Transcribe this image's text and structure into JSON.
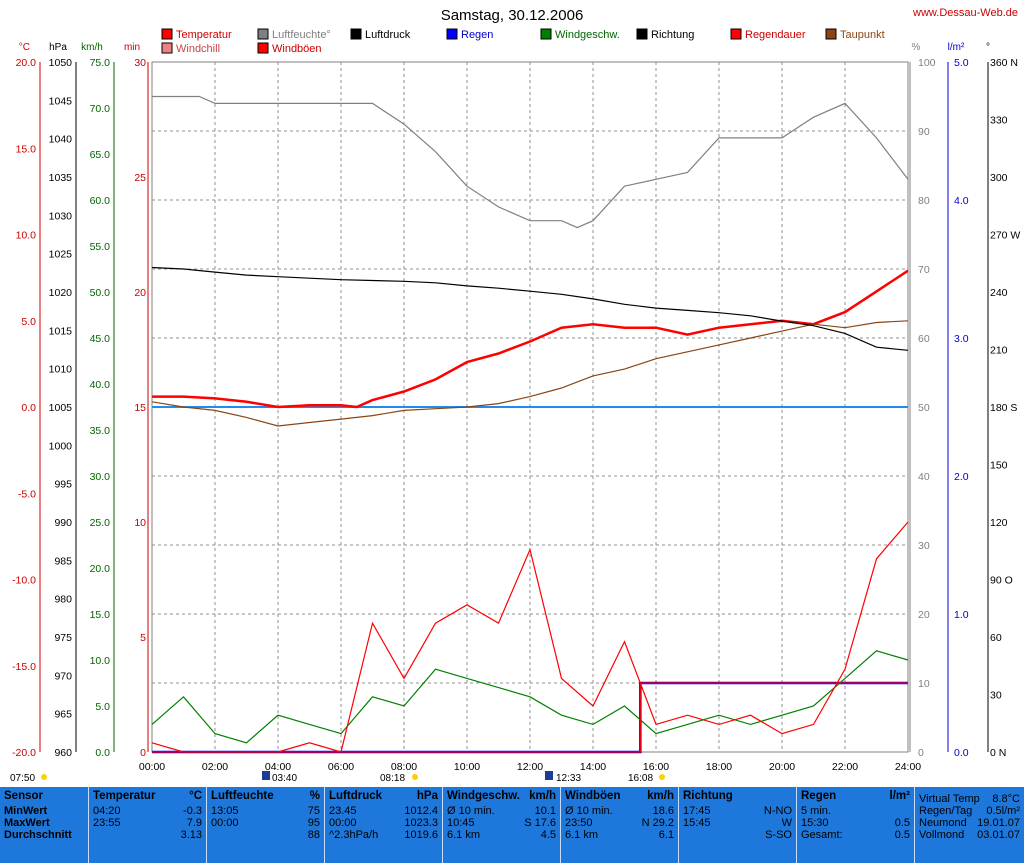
{
  "header": {
    "title": "Samstag, 30.12.2006",
    "site": "www.Dessau-Web.de"
  },
  "legend": [
    {
      "label": "Temperatur",
      "color": "#ff0000"
    },
    {
      "label": "Windchill",
      "color": "#f08080"
    },
    {
      "label": "Luftfeuchte°",
      "color": "#808080"
    },
    {
      "label": "Windböen",
      "color": "#ff0000"
    },
    {
      "label": "Luftdruck",
      "color": "#000000"
    },
    {
      "label": "Regen",
      "color": "#0000ff"
    },
    {
      "label": "Windgeschw.",
      "color": "#008000"
    },
    {
      "label": "Richtung",
      "color": "#000000"
    },
    {
      "label": "Regendauer",
      "color": "#ff0000"
    },
    {
      "label": "Taupunkt",
      "color": "#8b4513"
    }
  ],
  "axis_units": {
    "temp": "°C",
    "pressure": "hPa",
    "wind": "km/h",
    "min": "min",
    "humidity": "%",
    "rain": "l/m²",
    "direction": "°"
  },
  "axes": {
    "temp_ticks": [
      "20.0",
      "15.0",
      "10.0",
      "5.0",
      "0.0",
      "-5.0",
      "-10.0",
      "-15.0",
      "-20.0"
    ],
    "pressure_ticks": [
      "1050",
      "1045",
      "1040",
      "1035",
      "1030",
      "1025",
      "1020",
      "1015",
      "1010",
      "1005",
      "1000",
      "995",
      "990",
      "985",
      "980",
      "975",
      "970",
      "965",
      "960"
    ],
    "wind_ticks": [
      "75.0",
      "70.0",
      "65.0",
      "60.0",
      "55.0",
      "50.0",
      "45.0",
      "40.0",
      "35.0",
      "30.0",
      "25.0",
      "20.0",
      "15.0",
      "10.0",
      "5.0",
      "0.0"
    ],
    "min_ticks": [
      "30",
      "25",
      "20",
      "15",
      "10",
      "5",
      "0"
    ],
    "humidity_ticks": [
      "100",
      "90",
      "80",
      "70",
      "60",
      "50",
      "40",
      "30",
      "20",
      "10",
      "0"
    ],
    "rain_ticks": [
      "5.0",
      "4.0",
      "3.0",
      "2.0",
      "1.0",
      "0.0"
    ],
    "dir_ticks": [
      "360 N",
      "330",
      "300",
      "270 W",
      "240",
      "210",
      "180 S",
      "150",
      "120",
      "90  O",
      "60",
      "30",
      "0  N"
    ],
    "x_ticks": [
      "00:00",
      "02:00",
      "04:00",
      "06:00",
      "08:00",
      "10:00",
      "12:00",
      "14:00",
      "16:00",
      "18:00",
      "20:00",
      "22:00",
      "24:00"
    ]
  },
  "sun_moon": {
    "sunrise": "07:50",
    "moonset": "03:40",
    "sunrise_marker": "08:18",
    "moonrise": "12:33",
    "sunset": "16:08"
  },
  "chart_data": {
    "type": "line",
    "title": "Samstag, 30.12.2006",
    "x_unit": "hours",
    "xlim": [
      0,
      24
    ],
    "series": [
      {
        "name": "Temperatur",
        "axis": "temp",
        "ylim": [
          -20,
          20
        ],
        "x": [
          0,
          1,
          2,
          3,
          4,
          5,
          6,
          6.5,
          7,
          8,
          9,
          10,
          11,
          12,
          13,
          14,
          15,
          16,
          17,
          18,
          19,
          20,
          21,
          22,
          23,
          24
        ],
        "y": [
          0.6,
          0.6,
          0.5,
          0.3,
          0.0,
          0.1,
          0.1,
          0.0,
          0.4,
          0.9,
          1.6,
          2.6,
          3.1,
          3.8,
          4.6,
          4.8,
          4.6,
          4.6,
          4.2,
          4.6,
          4.8,
          5.0,
          4.8,
          5.5,
          6.7,
          7.9
        ]
      },
      {
        "name": "Taupunkt",
        "axis": "temp",
        "ylim": [
          -20,
          20
        ],
        "x": [
          0,
          1,
          2,
          3,
          4,
          5,
          6,
          7,
          8,
          9,
          10,
          11,
          12,
          13,
          14,
          15,
          16,
          17,
          18,
          19,
          20,
          21,
          22,
          23,
          24
        ],
        "y": [
          0.3,
          0.0,
          -0.2,
          -0.6,
          -1.1,
          -0.9,
          -0.7,
          -0.5,
          -0.2,
          -0.1,
          0.0,
          0.2,
          0.6,
          1.1,
          1.8,
          2.2,
          2.8,
          3.2,
          3.6,
          4.0,
          4.4,
          4.8,
          4.6,
          4.9,
          5.0
        ]
      },
      {
        "name": "Luftfeuchte°",
        "axis": "humidity",
        "ylim": [
          0,
          100
        ],
        "x": [
          0,
          1,
          1.5,
          2,
          4,
          6,
          7,
          8,
          9,
          10,
          11,
          12,
          13,
          13.5,
          14,
          15,
          16,
          17,
          18,
          19,
          20,
          21,
          22,
          23,
          24
        ],
        "y": [
          95,
          95,
          95,
          94,
          94,
          94,
          94,
          91,
          87,
          82,
          79,
          77,
          77,
          76,
          77,
          82,
          83,
          84,
          89,
          89,
          89,
          92,
          94,
          89,
          83
        ]
      },
      {
        "name": "Luftdruck",
        "axis": "pressure",
        "ylim": [
          960,
          1050
        ],
        "x": [
          0,
          1,
          2,
          3,
          4,
          5,
          6,
          7,
          8,
          9,
          10,
          11,
          12,
          13,
          14,
          15,
          16,
          17,
          18,
          19,
          20,
          21,
          22,
          23,
          24
        ],
        "y": [
          1023.2,
          1023.0,
          1022.6,
          1022.2,
          1022.0,
          1021.8,
          1021.6,
          1021.5,
          1021.4,
          1021.2,
          1020.8,
          1020.5,
          1020.1,
          1019.7,
          1019.1,
          1018.4,
          1017.9,
          1017.6,
          1017.3,
          1016.9,
          1016.2,
          1015.6,
          1014.6,
          1012.8,
          1012.4
        ]
      },
      {
        "name": "Regen",
        "axis": "rain",
        "ylim": [
          0,
          5
        ],
        "x": [
          0,
          15.5,
          15.5,
          15.6,
          24
        ],
        "y": [
          0,
          0,
          0.5,
          0.5,
          0.5
        ]
      },
      {
        "name": "Windgeschw.",
        "axis": "wind",
        "ylim": [
          0,
          75
        ],
        "x": [
          0,
          1,
          2,
          3,
          4,
          5,
          6,
          7,
          8,
          9,
          10,
          11,
          12,
          13,
          14,
          15,
          16,
          17,
          18,
          19,
          20,
          21,
          22,
          23,
          24
        ],
        "y": [
          3,
          6,
          2,
          1,
          4,
          3,
          2,
          6,
          5,
          9,
          8,
          7,
          6,
          4,
          3,
          5,
          2,
          3,
          4,
          3,
          4,
          5,
          8,
          11,
          10
        ]
      },
      {
        "name": "Windböen",
        "axis": "wind",
        "ylim": [
          0,
          75
        ],
        "x": [
          0,
          1,
          2,
          3,
          4,
          5,
          6,
          7,
          8,
          9,
          10,
          11,
          12,
          13,
          14,
          15,
          16,
          17,
          18,
          19,
          20,
          21,
          22,
          23,
          24
        ],
        "y": [
          1,
          0,
          0,
          0,
          0,
          1,
          0,
          14,
          8,
          14,
          16,
          14,
          22,
          8,
          5,
          12,
          3,
          4,
          3,
          4,
          2,
          3,
          9,
          21,
          25
        ]
      },
      {
        "name": "Regendauer",
        "axis": "min",
        "ylim": [
          0,
          30
        ],
        "x": [
          0,
          15.5,
          15.5,
          17,
          17,
          24
        ],
        "y": [
          0,
          0,
          3,
          3,
          3,
          3
        ]
      }
    ]
  },
  "panel": {
    "sensor": {
      "header": "Sensor",
      "rows": [
        "MinWert",
        "MaxWert",
        "Durchschnitt"
      ]
    },
    "temperatur": {
      "header": "Temperatur",
      "unit": "°C",
      "rows": [
        [
          "04:20",
          "-0.3"
        ],
        [
          "23:55",
          "7.9"
        ],
        [
          "",
          "3.13"
        ]
      ]
    },
    "luftfeuchte": {
      "header": "Luftfeuchte",
      "unit": "%",
      "rows": [
        [
          "13:05",
          "75"
        ],
        [
          "00:00",
          "95"
        ],
        [
          "",
          "88"
        ]
      ]
    },
    "luftdruck": {
      "header": "Luftdruck",
      "unit": "hPa",
      "rows": [
        [
          "23.45",
          "1012.4"
        ],
        [
          "00:00",
          "1023.3"
        ],
        [
          "^2.3hPa/h",
          "1019.6"
        ]
      ]
    },
    "windgeschw": {
      "header": "Windgeschw.",
      "unit": "km/h",
      "rows": [
        [
          "Ø 10 min.",
          "10.1"
        ],
        [
          "10:45",
          "S 17.6"
        ],
        [
          "6.1 km",
          "4.5"
        ]
      ]
    },
    "windboeen": {
      "header": "Windböen",
      "unit": "km/h",
      "rows": [
        [
          "Ø 10 min.",
          "18.6"
        ],
        [
          "23:50",
          "N 29.2"
        ],
        [
          "6.1 km",
          "6.1"
        ]
      ]
    },
    "richtung": {
      "header": "Richtung",
      "rows": [
        [
          "17:45",
          "N-NO"
        ],
        [
          "15:45",
          "W"
        ],
        [
          "",
          "S-SO"
        ]
      ]
    },
    "regen": {
      "header": "Regen",
      "unit": "l/m²",
      "rows": [
        [
          "5 min.",
          ""
        ],
        [
          "15:30",
          "0.5"
        ],
        [
          "Gesamt:",
          "0.5"
        ]
      ]
    },
    "info": {
      "rows": [
        [
          "Virtual Temp",
          "8.8°C"
        ],
        [
          "Regen/Tag",
          "0.5l/m²"
        ],
        [
          "Neumond",
          "19.01.07"
        ],
        [
          "Vollmond",
          "03.01.07"
        ]
      ]
    }
  }
}
